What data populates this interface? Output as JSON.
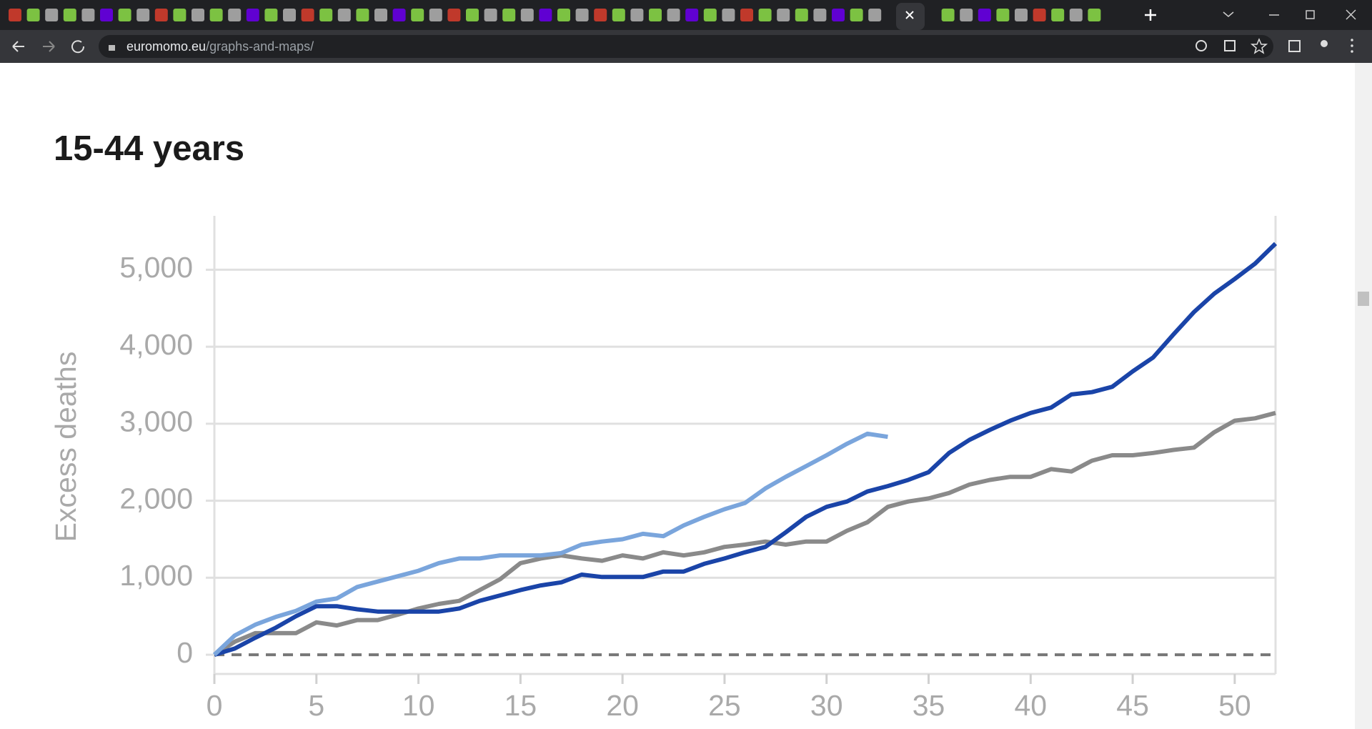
{
  "browser": {
    "url_host": "euromomo.eu",
    "url_path": "/graphs-and-maps/"
  },
  "chart_data": {
    "type": "line",
    "title": "15-44 years",
    "y_label": "Excess deaths",
    "x": [
      0,
      1,
      2,
      3,
      4,
      5,
      6,
      7,
      8,
      9,
      10,
      11,
      12,
      13,
      14,
      15,
      16,
      17,
      18,
      19,
      20,
      21,
      22,
      23,
      24,
      25,
      26,
      27,
      28,
      29,
      30,
      31,
      32,
      33,
      34,
      35,
      36,
      37,
      38,
      39,
      40,
      41,
      42,
      43,
      44,
      45,
      46,
      47,
      48,
      49,
      50,
      51,
      52
    ],
    "series": [
      {
        "color": "#8a8a8a",
        "values": [
          0,
          170,
          280,
          280,
          280,
          420,
          380,
          450,
          450,
          520,
          600,
          660,
          700,
          840,
          980,
          1190,
          1250,
          1290,
          1250,
          1220,
          1290,
          1250,
          1330,
          1290,
          1330,
          1400,
          1430,
          1470,
          1430,
          1470,
          1470,
          1610,
          1720,
          1920,
          1990,
          2030,
          2100,
          2210,
          2270,
          2310,
          2310,
          2410,
          2380,
          2520,
          2590,
          2590,
          2620,
          2660,
          2690,
          2890,
          3040,
          3070,
          3140
        ]
      },
      {
        "color": "#1a44a8",
        "values": [
          0,
          80,
          220,
          350,
          500,
          630,
          630,
          590,
          560,
          560,
          560,
          560,
          600,
          700,
          770,
          840,
          900,
          940,
          1040,
          1010,
          1010,
          1010,
          1080,
          1080,
          1180,
          1250,
          1330,
          1400,
          1590,
          1790,
          1920,
          1990,
          2120,
          2190,
          2270,
          2370,
          2620,
          2790,
          2920,
          3040,
          3140,
          3210,
          3380,
          3410,
          3480,
          3680,
          3860,
          4160,
          4450,
          4690,
          4880,
          5080,
          5340
        ]
      },
      {
        "color": "#7aa5dc",
        "values": [
          0,
          250,
          390,
          490,
          570,
          690,
          730,
          880,
          950,
          1020,
          1090,
          1190,
          1250,
          1250,
          1290,
          1290,
          1290,
          1320,
          1430,
          1470,
          1500,
          1570,
          1540,
          1680,
          1790,
          1890,
          1970,
          2160,
          2310,
          2450,
          2590,
          2740,
          2870,
          2830,
          null,
          null,
          null,
          null,
          null,
          null,
          null,
          null,
          null,
          null,
          null,
          null,
          null,
          null,
          null,
          null,
          null,
          null,
          null
        ]
      }
    ],
    "xlim": [
      0,
      52
    ],
    "xticks": [
      0,
      5,
      10,
      15,
      20,
      25,
      30,
      35,
      40,
      45,
      50
    ],
    "ylim": [
      -250,
      5700
    ],
    "yticks": [
      0,
      {
        "value": 1000,
        "label": "1,000"
      },
      {
        "value": 2000,
        "label": "2,000"
      },
      {
        "value": 3000,
        "label": "3,000"
      },
      {
        "value": 4000,
        "label": "4,000"
      },
      {
        "value": 5000,
        "label": "5,000"
      }
    ],
    "grid": true
  }
}
